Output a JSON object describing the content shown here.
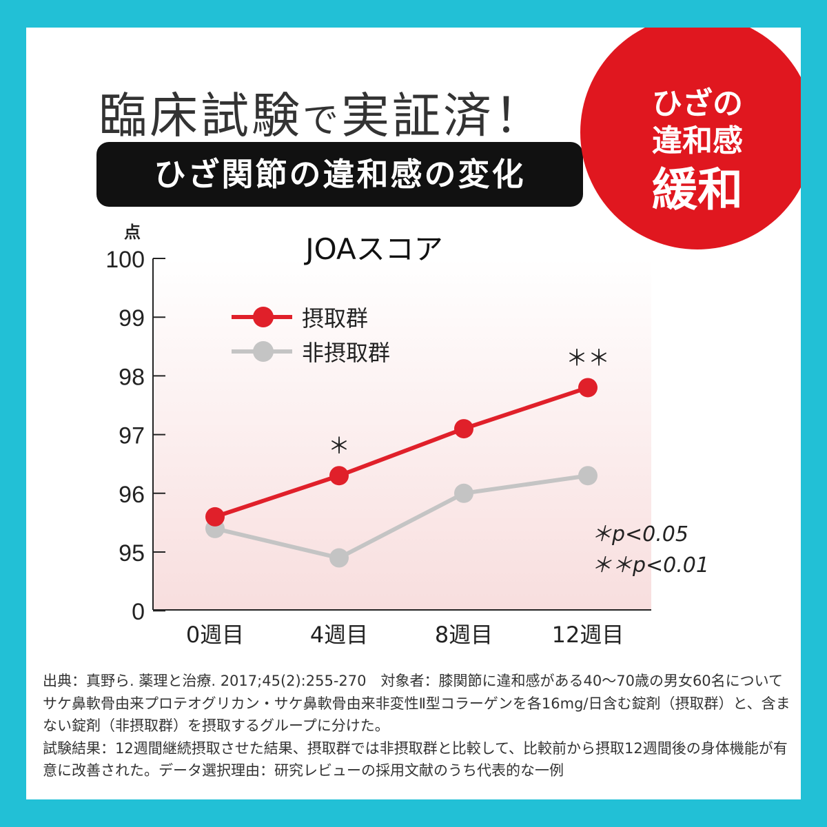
{
  "headline": {
    "part1": "臨床試験",
    "part2": "で",
    "part3": "実証済！"
  },
  "subtitle": "ひざ関節の違和感の変化",
  "badge": {
    "line1": "ひざの",
    "line2": "違和感",
    "line3": "緩和"
  },
  "chart_data": {
    "type": "line",
    "title": "JOAスコア",
    "ylabel": "点",
    "xlabel": "",
    "categories": [
      "0週目",
      "4週目",
      "8週目",
      "12週目"
    ],
    "y_ticks": [
      "100",
      "99",
      "98",
      "97",
      "96",
      "95",
      "0"
    ],
    "ylim": [
      0,
      100
    ],
    "axis_break": "between 0 and 95",
    "series": [
      {
        "name": "摂取群",
        "color": "#e0202a",
        "values": [
          95.6,
          96.3,
          97.1,
          97.8
        ]
      },
      {
        "name": "非摂取群",
        "color": "#c4c4c4",
        "values": [
          95.4,
          94.9,
          96.0,
          96.3
        ]
      }
    ],
    "annotations": [
      {
        "category": "4週目",
        "series": "摂取群",
        "text": "＊"
      },
      {
        "category": "12週目",
        "series": "摂取群",
        "text": "＊＊"
      }
    ],
    "significance": [
      "＊p<0.05",
      "＊＊p<0.01"
    ],
    "legend": "top-left"
  },
  "notes": [
    "出典：真野ら. 薬理と治療. 2017;45(2):255-270　対象者：膝関節に違和感がある40〜70歳の男女60名についてサケ鼻軟骨由来プロテオグリカン・サケ鼻軟骨由来非変性Ⅱ型コラーゲンを各16mg/日含む錠剤（摂取群）と、含まない錠剤（非摂取群）を摂取するグループに分けた。",
    "試験結果：12週間継続摂取させた結果、摂取群では非摂取群と比較して、比較前から摂取12週間後の身体機能が有意に改善された。データ選択理由：研究レビューの採用文献のうち代表的な一例"
  ]
}
